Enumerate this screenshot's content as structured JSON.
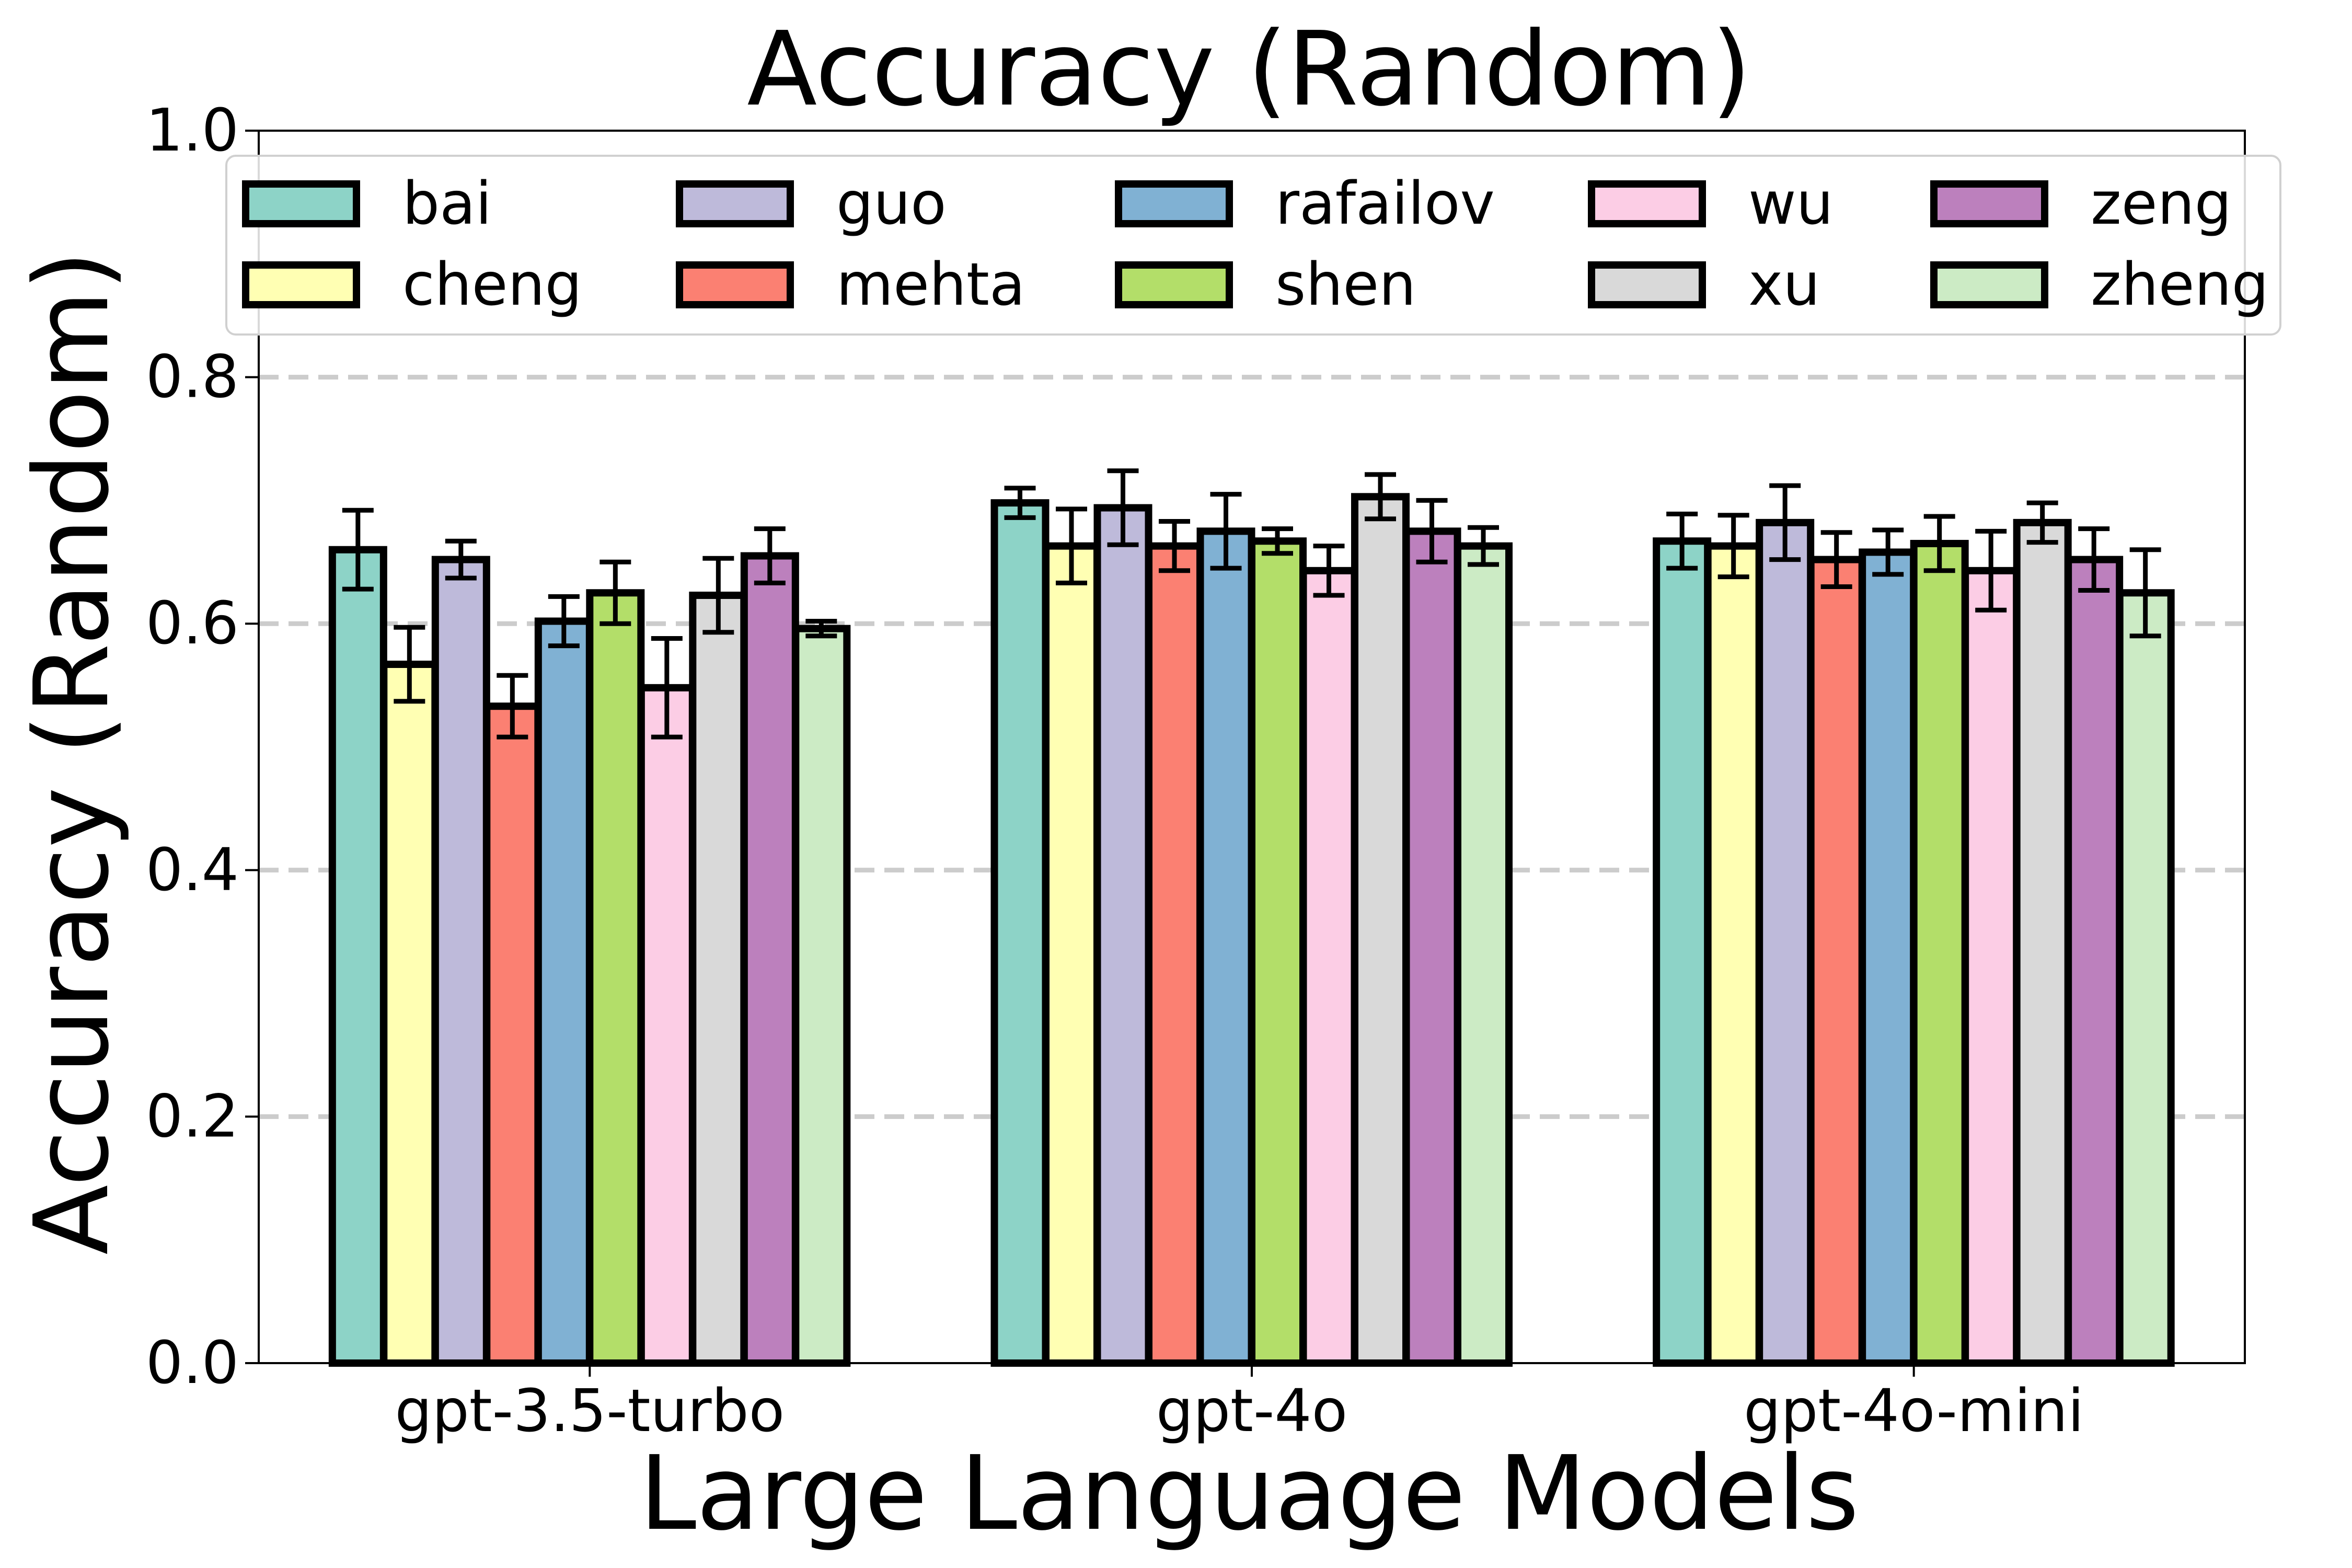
{
  "chart_data": {
    "type": "bar",
    "title": "Accuracy (Random)",
    "xlabel": "Large Language Models",
    "ylabel": "Accuracy (Random)",
    "ylim": [
      0,
      1.0
    ],
    "yticks": [
      "0.0",
      "0.2",
      "0.4",
      "0.6",
      "0.8",
      "1.0"
    ],
    "grid": "y-dashed",
    "legend_position": "top",
    "categories": [
      "gpt-3.5-turbo",
      "gpt-4o",
      "gpt-4o-mini"
    ],
    "series": [
      {
        "name": "bai",
        "color": "#8dd3c7",
        "values": [
          0.66,
          0.698,
          0.667
        ],
        "errors": [
          0.032,
          0.012,
          0.022
        ]
      },
      {
        "name": "cheng",
        "color": "#ffffb3",
        "values": [
          0.567,
          0.663,
          0.663
        ],
        "errors": [
          0.03,
          0.03,
          0.025
        ]
      },
      {
        "name": "guo",
        "color": "#bebada",
        "values": [
          0.652,
          0.694,
          0.682
        ],
        "errors": [
          0.015,
          0.03,
          0.03
        ]
      },
      {
        "name": "mehta",
        "color": "#fb8072",
        "values": [
          0.533,
          0.663,
          0.652
        ],
        "errors": [
          0.025,
          0.02,
          0.022
        ]
      },
      {
        "name": "rafailov",
        "color": "#80b1d3",
        "values": [
          0.602,
          0.675,
          0.658
        ],
        "errors": [
          0.02,
          0.03,
          0.018
        ]
      },
      {
        "name": "shen",
        "color": "#b3de69",
        "values": [
          0.625,
          0.667,
          0.665
        ],
        "errors": [
          0.025,
          0.01,
          0.022
        ]
      },
      {
        "name": "wu",
        "color": "#fccde5",
        "values": [
          0.548,
          0.643,
          0.643
        ],
        "errors": [
          0.04,
          0.02,
          0.032
        ]
      },
      {
        "name": "xu",
        "color": "#d9d9d9",
        "values": [
          0.623,
          0.703,
          0.682
        ],
        "errors": [
          0.03,
          0.018,
          0.016
        ]
      },
      {
        "name": "zeng",
        "color": "#bc80bd",
        "values": [
          0.655,
          0.675,
          0.652
        ],
        "errors": [
          0.022,
          0.025,
          0.025
        ]
      },
      {
        "name": "zheng",
        "color": "#ccebc5",
        "values": [
          0.596,
          0.663,
          0.625
        ],
        "errors": [
          0.006,
          0.015,
          0.035
        ]
      }
    ]
  }
}
